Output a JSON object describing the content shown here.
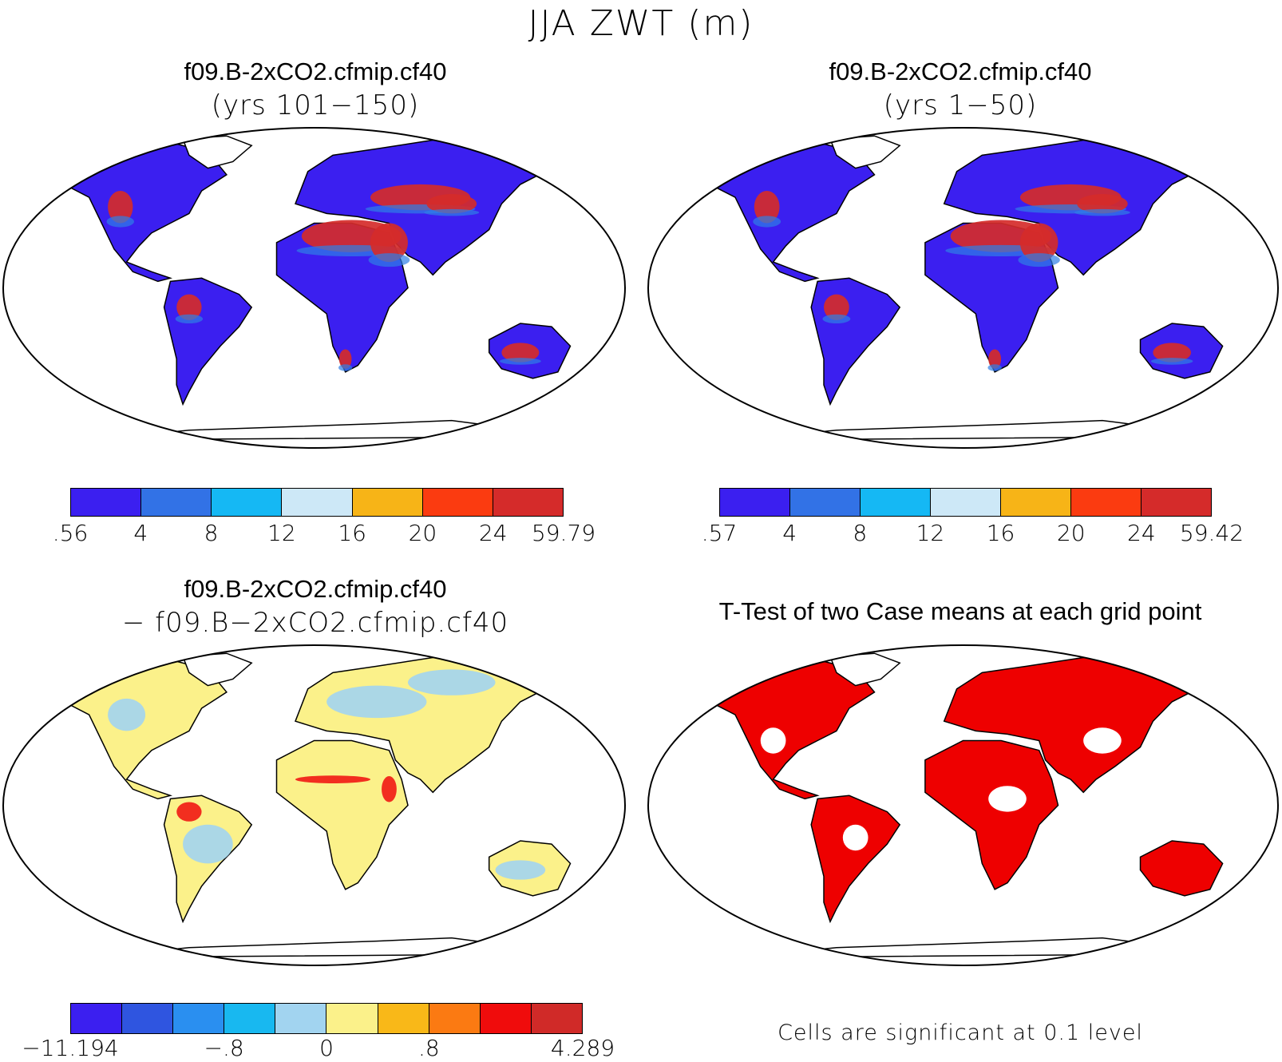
{
  "main_title": "JJA ZWT (m)",
  "panels": [
    {
      "id": "p1",
      "title": "f09.B-2xCO2.cfmip.cf40",
      "subtitle": "(yrs 101−150)",
      "colorbar": {
        "colors": [
          "#3b1ff0",
          "#3272e6",
          "#15b8f4",
          "#cde8f7",
          "#f7b417",
          "#fb3b10",
          "#d52b2a"
        ],
        "labels": [
          ".56",
          "4",
          "8",
          "12",
          "16",
          "20",
          "24",
          "59.79"
        ]
      }
    },
    {
      "id": "p2",
      "title": "f09.B-2xCO2.cfmip.cf40",
      "subtitle": "(yrs 1−50)",
      "colorbar": {
        "colors": [
          "#3b1ff0",
          "#3272e6",
          "#15b8f4",
          "#cde8f7",
          "#f7b417",
          "#fb3b10",
          "#d52b2a"
        ],
        "labels": [
          ".57",
          "4",
          "8",
          "12",
          "16",
          "20",
          "24",
          "59.42"
        ]
      }
    },
    {
      "id": "p3",
      "title": "f09.B-2xCO2.cfmip.cf40",
      "subtitle": "− f09.B−2xCO2.cfmip.cf40",
      "colorbar": {
        "colors": [
          "#3b1ff0",
          "#2f55e0",
          "#2a8ff0",
          "#18b8f0",
          "#a2d4f0",
          "#fbf18a",
          "#f9b818",
          "#fb7a12",
          "#f00c0c",
          "#d02a28"
        ],
        "labels": [
          "−11.194",
          "−.8",
          "0",
          ".8",
          "4.289"
        ],
        "label_positions": [
          0,
          3,
          5,
          7,
          10
        ]
      }
    },
    {
      "id": "p4",
      "title": "T-Test of two Case means at each grid point",
      "note": "Cells are significant at 0.1 level"
    }
  ],
  "colors": {
    "land_low": "#3b1ff0",
    "land_mid": "#2f7fe6",
    "land_high": "#d52b2a",
    "diff_base": "#fbf18a",
    "diff_neg": "#a2d4f0",
    "significant": "#ee0000"
  }
}
